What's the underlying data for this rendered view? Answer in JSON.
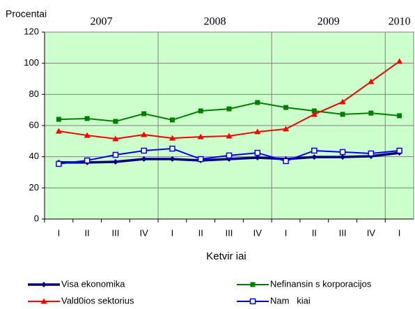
{
  "chart_data": {
    "type": "line",
    "y_label": "Procentai",
    "x_label": "Ketvir iai",
    "year_labels": [
      "2007",
      "2008",
      "2009",
      "2010"
    ],
    "categories": [
      "I",
      "II",
      "III",
      "IV",
      "I",
      "II",
      "III",
      "IV",
      "I",
      "II",
      "III",
      "IV",
      "I"
    ],
    "ylim": [
      0,
      120
    ],
    "yticks": [
      0,
      20,
      40,
      60,
      80,
      100,
      120
    ],
    "grid": true,
    "background": "#ccffcc",
    "series": [
      {
        "name": "Visa ekonomika",
        "color": "#000080",
        "marker": "diamond",
        "values": [
          36.3,
          36.3,
          36.7,
          38.5,
          38.5,
          37.6,
          38.5,
          39.4,
          38.5,
          39.8,
          39.8,
          40.3,
          42.5
        ]
      },
      {
        "name": "Nefinansin s korporacijos",
        "color": "#008000",
        "marker": "square",
        "values": [
          64,
          64.5,
          62.7,
          67.6,
          63.6,
          69.4,
          70.7,
          74.8,
          71.6,
          69.4,
          67.2,
          68,
          66.3
        ]
      },
      {
        "name": "Vald0ios sektorius",
        "color": "#ff0000",
        "marker": "triangle",
        "values": [
          56.4,
          53.7,
          51.5,
          54.2,
          51.9,
          52.8,
          53.3,
          56,
          57.8,
          67.2,
          75.2,
          88.2,
          101.2
        ]
      },
      {
        "name": "Nam   kiai",
        "color": "#0000ff",
        "marker": "open-square",
        "values": [
          35.4,
          37.6,
          41.2,
          43.9,
          45.2,
          38.5,
          40.8,
          42.5,
          37.2,
          43.9,
          43,
          42.1,
          43.9
        ]
      }
    ]
  }
}
